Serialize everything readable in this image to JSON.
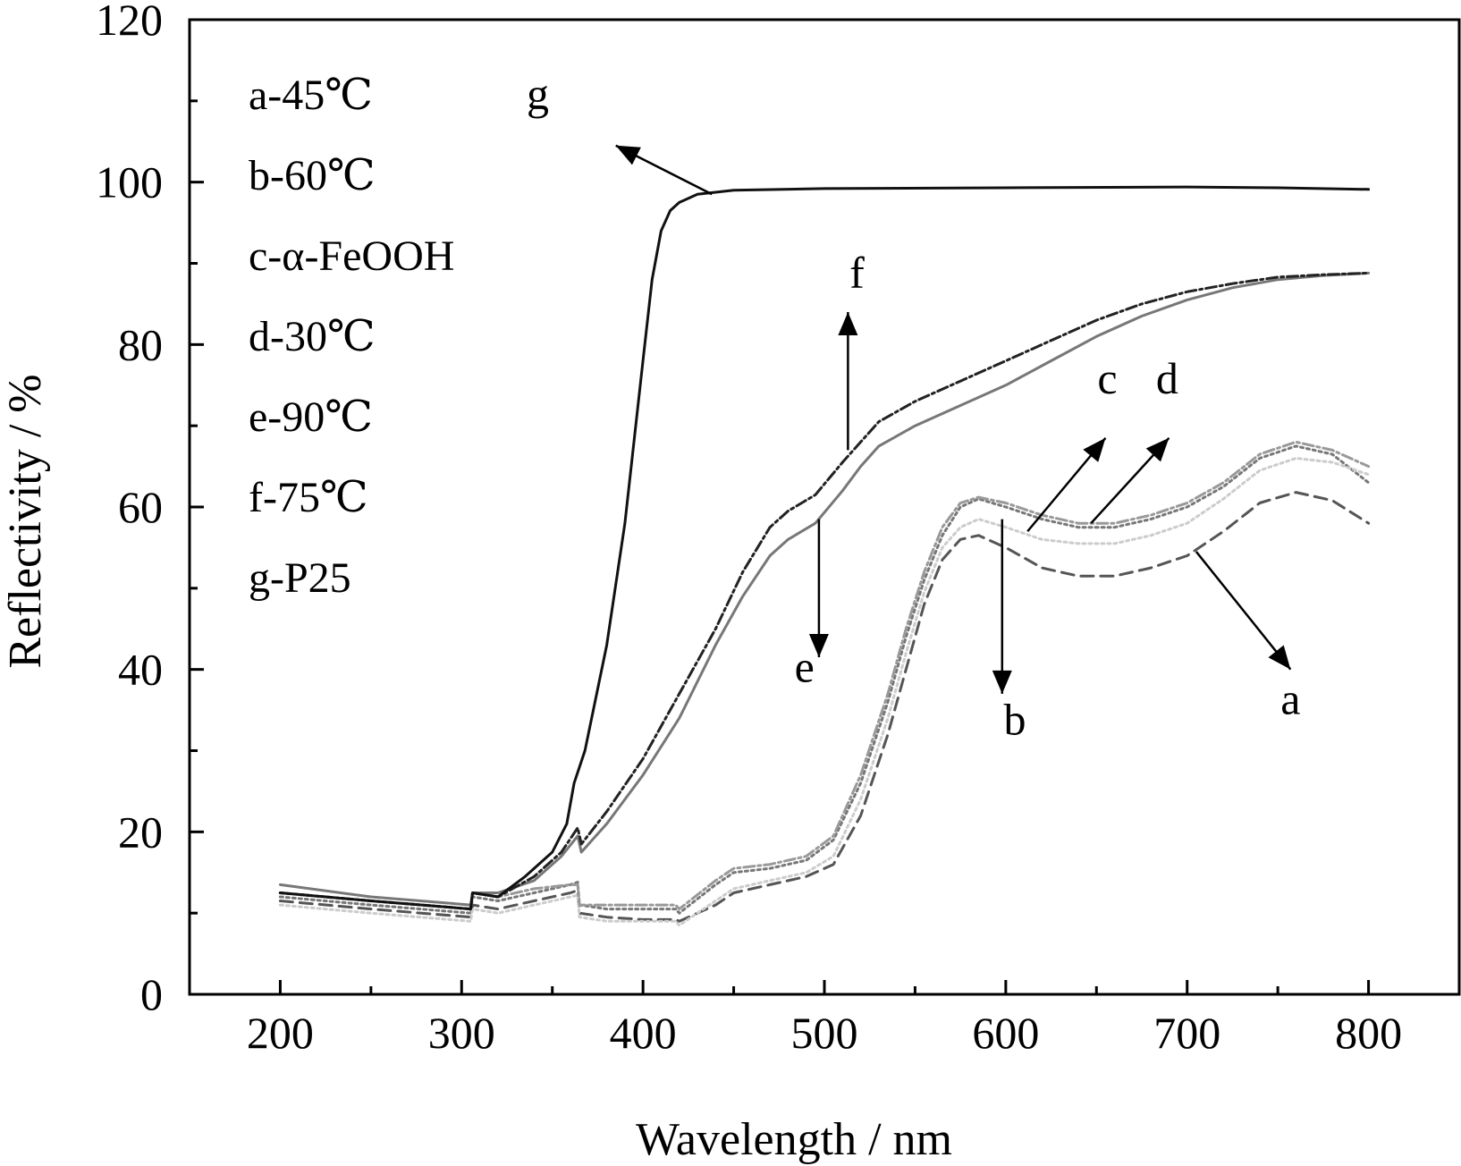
{
  "chart_data": {
    "type": "line",
    "xlabel": "Wavelength / nm",
    "ylabel": "Reflectivity / %",
    "xlim": [
      150,
      850
    ],
    "ylim": [
      0,
      120
    ],
    "xticks": [
      200,
      300,
      400,
      500,
      600,
      700,
      800
    ],
    "yticks": [
      0,
      20,
      40,
      60,
      80,
      100,
      120
    ],
    "x_minor_ticks": [
      250,
      350,
      450,
      550,
      650,
      750
    ],
    "y_minor_ticks": [
      10,
      30,
      50,
      70,
      90,
      110
    ],
    "grid": false,
    "legend_position": "top-left",
    "legend": [
      "a-45℃",
      "b-60℃",
      "c-α-FeOOH",
      "d-30℃",
      "e-90℃",
      "f-75℃",
      "g-P25"
    ],
    "series": [
      {
        "name": "a-45℃",
        "color": "#555555",
        "dash": "dashed",
        "points": [
          [
            200,
            11.5
          ],
          [
            250,
            10.5
          ],
          [
            305,
            9.5
          ],
          [
            306,
            11
          ],
          [
            320,
            10.5
          ],
          [
            340,
            11.5
          ],
          [
            360,
            12.5
          ],
          [
            364,
            12.8
          ],
          [
            365,
            10
          ],
          [
            380,
            9.5
          ],
          [
            400,
            9.2
          ],
          [
            418,
            9.2
          ],
          [
            420,
            9
          ],
          [
            440,
            11
          ],
          [
            450,
            12.5
          ],
          [
            470,
            13.5
          ],
          [
            490,
            14.5
          ],
          [
            505,
            16
          ],
          [
            520,
            22
          ],
          [
            535,
            32
          ],
          [
            545,
            40
          ],
          [
            555,
            48
          ],
          [
            565,
            53.5
          ],
          [
            575,
            56
          ],
          [
            585,
            56.5
          ],
          [
            600,
            55
          ],
          [
            620,
            52.5
          ],
          [
            640,
            51.5
          ],
          [
            660,
            51.5
          ],
          [
            680,
            52.5
          ],
          [
            700,
            54
          ],
          [
            720,
            57
          ],
          [
            740,
            60.5
          ],
          [
            760,
            61.8
          ],
          [
            780,
            60.8
          ],
          [
            800,
            58
          ]
        ]
      },
      {
        "name": "b-60℃",
        "color": "#777777",
        "dash": "dotted",
        "points": [
          [
            200,
            12
          ],
          [
            250,
            11
          ],
          [
            305,
            10
          ],
          [
            306,
            12
          ],
          [
            320,
            11.5
          ],
          [
            340,
            12.5
          ],
          [
            360,
            13.5
          ],
          [
            364,
            13.8
          ],
          [
            365,
            11
          ],
          [
            380,
            10.5
          ],
          [
            400,
            10.5
          ],
          [
            418,
            10.5
          ],
          [
            420,
            10
          ],
          [
            440,
            13.5
          ],
          [
            450,
            15
          ],
          [
            470,
            15.5
          ],
          [
            490,
            16.5
          ],
          [
            505,
            19
          ],
          [
            520,
            26
          ],
          [
            535,
            36
          ],
          [
            545,
            44
          ],
          [
            555,
            51
          ],
          [
            565,
            56.5
          ],
          [
            575,
            60
          ],
          [
            585,
            61
          ],
          [
            600,
            60
          ],
          [
            620,
            58.5
          ],
          [
            640,
            57.5
          ],
          [
            660,
            57.5
          ],
          [
            680,
            58.5
          ],
          [
            700,
            60
          ],
          [
            720,
            62.5
          ],
          [
            740,
            66
          ],
          [
            760,
            67.5
          ],
          [
            780,
            66.5
          ],
          [
            800,
            63
          ]
        ]
      },
      {
        "name": "c-α-FeOOH",
        "color": "#cccccc",
        "dash": "dotted",
        "points": [
          [
            200,
            11
          ],
          [
            250,
            10
          ],
          [
            305,
            9
          ],
          [
            306,
            10.5
          ],
          [
            320,
            10
          ],
          [
            340,
            11
          ],
          [
            360,
            12
          ],
          [
            364,
            12.2
          ],
          [
            365,
            9.5
          ],
          [
            380,
            9
          ],
          [
            400,
            9
          ],
          [
            418,
            9
          ],
          [
            420,
            8.5
          ],
          [
            440,
            11.5
          ],
          [
            450,
            13
          ],
          [
            470,
            14
          ],
          [
            490,
            15
          ],
          [
            505,
            17
          ],
          [
            520,
            24
          ],
          [
            535,
            34
          ],
          [
            545,
            42
          ],
          [
            555,
            49.5
          ],
          [
            565,
            55
          ],
          [
            575,
            57.5
          ],
          [
            585,
            58.5
          ],
          [
            600,
            57.5
          ],
          [
            620,
            56
          ],
          [
            640,
            55.5
          ],
          [
            660,
            55.5
          ],
          [
            680,
            56.5
          ],
          [
            700,
            58
          ],
          [
            720,
            61
          ],
          [
            740,
            64.5
          ],
          [
            760,
            66
          ],
          [
            780,
            65.5
          ],
          [
            800,
            64
          ]
        ]
      },
      {
        "name": "d-30℃",
        "color": "#999999",
        "dash": "dashdot",
        "points": [
          [
            200,
            12.5
          ],
          [
            250,
            11.5
          ],
          [
            305,
            10.5
          ],
          [
            306,
            12.5
          ],
          [
            320,
            12
          ],
          [
            340,
            13
          ],
          [
            360,
            13.5
          ],
          [
            364,
            13.5
          ],
          [
            365,
            11
          ],
          [
            380,
            11
          ],
          [
            400,
            11
          ],
          [
            418,
            11
          ],
          [
            420,
            10.5
          ],
          [
            440,
            14
          ],
          [
            450,
            15.5
          ],
          [
            470,
            16
          ],
          [
            490,
            17
          ],
          [
            505,
            19.5
          ],
          [
            520,
            27
          ],
          [
            535,
            37
          ],
          [
            545,
            45
          ],
          [
            555,
            52
          ],
          [
            565,
            57.5
          ],
          [
            575,
            60.5
          ],
          [
            585,
            61.2
          ],
          [
            600,
            60.5
          ],
          [
            620,
            59
          ],
          [
            640,
            58
          ],
          [
            660,
            58
          ],
          [
            680,
            59
          ],
          [
            700,
            60.5
          ],
          [
            720,
            63
          ],
          [
            740,
            66.5
          ],
          [
            760,
            68
          ],
          [
            780,
            67
          ],
          [
            800,
            65
          ]
        ]
      },
      {
        "name": "e-90℃",
        "color": "#777777",
        "dash": "solid",
        "points": [
          [
            200,
            13.5
          ],
          [
            250,
            12
          ],
          [
            305,
            11
          ],
          [
            306,
            12.5
          ],
          [
            320,
            12.5
          ],
          [
            340,
            14
          ],
          [
            355,
            17
          ],
          [
            364,
            19.5
          ],
          [
            366,
            17.5
          ],
          [
            380,
            21
          ],
          [
            400,
            27
          ],
          [
            420,
            34
          ],
          [
            440,
            43
          ],
          [
            455,
            49
          ],
          [
            470,
            54
          ],
          [
            480,
            56
          ],
          [
            495,
            58
          ],
          [
            510,
            62
          ],
          [
            520,
            65
          ],
          [
            530,
            67.5
          ],
          [
            550,
            70
          ],
          [
            575,
            72.5
          ],
          [
            600,
            75
          ],
          [
            625,
            78
          ],
          [
            650,
            81
          ],
          [
            675,
            83.5
          ],
          [
            700,
            85.5
          ],
          [
            725,
            87
          ],
          [
            750,
            88
          ],
          [
            775,
            88.5
          ],
          [
            800,
            88.8
          ]
        ]
      },
      {
        "name": "f-75℃",
        "color": "#222222",
        "dash": "dashdot",
        "points": [
          [
            200,
            12.5
          ],
          [
            250,
            11.5
          ],
          [
            305,
            10.5
          ],
          [
            306,
            12.5
          ],
          [
            320,
            12
          ],
          [
            340,
            14.5
          ],
          [
            355,
            17.5
          ],
          [
            364,
            20.5
          ],
          [
            366,
            18.5
          ],
          [
            380,
            22.5
          ],
          [
            400,
            29
          ],
          [
            420,
            37
          ],
          [
            440,
            45
          ],
          [
            455,
            52
          ],
          [
            470,
            57.5
          ],
          [
            480,
            59.5
          ],
          [
            495,
            61.5
          ],
          [
            510,
            65.5
          ],
          [
            520,
            68
          ],
          [
            530,
            70.5
          ],
          [
            550,
            73
          ],
          [
            575,
            75.5
          ],
          [
            600,
            78
          ],
          [
            625,
            80.5
          ],
          [
            650,
            83
          ],
          [
            675,
            85
          ],
          [
            700,
            86.5
          ],
          [
            725,
            87.5
          ],
          [
            750,
            88.3
          ],
          [
            775,
            88.6
          ],
          [
            800,
            88.8
          ]
        ]
      },
      {
        "name": "g-P25",
        "color": "#111111",
        "dash": "solid",
        "points": [
          [
            200,
            12.5
          ],
          [
            250,
            11.5
          ],
          [
            305,
            10.5
          ],
          [
            306,
            12.5
          ],
          [
            320,
            12
          ],
          [
            335,
            14.5
          ],
          [
            350,
            17.5
          ],
          [
            358,
            21
          ],
          [
            362,
            26
          ],
          [
            368,
            30
          ],
          [
            380,
            43
          ],
          [
            390,
            58
          ],
          [
            395,
            68
          ],
          [
            400,
            78
          ],
          [
            405,
            88
          ],
          [
            410,
            94
          ],
          [
            415,
            96.5
          ],
          [
            420,
            97.5
          ],
          [
            430,
            98.5
          ],
          [
            450,
            99
          ],
          [
            500,
            99.2
          ],
          [
            600,
            99.3
          ],
          [
            700,
            99.4
          ],
          [
            750,
            99.3
          ],
          [
            800,
            99.1
          ]
        ]
      }
    ],
    "annotations": [
      {
        "label": "g",
        "text_at": [
          342,
          109
        ],
        "arrow_from": [
          438,
          98.5
        ],
        "arrow_to": [
          385,
          104.5
        ]
      },
      {
        "label": "f",
        "text_at": [
          518,
          87
        ],
        "arrow_from": [
          513,
          67
        ],
        "arrow_to": [
          513,
          84
        ]
      },
      {
        "label": "e",
        "text_at": [
          489,
          38.5
        ],
        "arrow_from": [
          497,
          58.5
        ],
        "arrow_to": [
          497,
          41.5
        ]
      },
      {
        "label": "b",
        "text_at": [
          605,
          32
        ],
        "arrow_from": [
          598,
          58.5
        ],
        "arrow_to": [
          598,
          37
        ]
      },
      {
        "label": "c",
        "text_at": [
          656,
          74
        ],
        "arrow_from": [
          612,
          57
        ],
        "arrow_to": [
          655,
          68.5
        ]
      },
      {
        "label": "d",
        "text_at": [
          689,
          74
        ],
        "arrow_from": [
          647,
          58
        ],
        "arrow_to": [
          690,
          68.5
        ]
      },
      {
        "label": "a",
        "text_at": [
          757,
          34.5
        ],
        "arrow_from": [
          705,
          54.5
        ],
        "arrow_to": [
          757,
          40
        ]
      }
    ]
  }
}
